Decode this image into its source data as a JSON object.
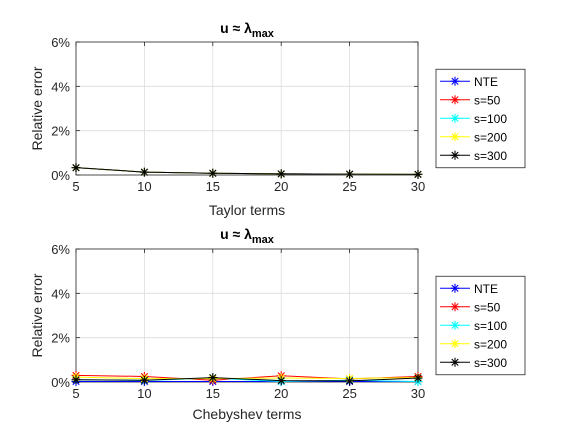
{
  "chart_data": [
    {
      "type": "line",
      "title": "u ≈ λ",
      "title_subscript": "max",
      "xlabel": "Taylor terms",
      "ylabel": "Relative error",
      "x": [
        5,
        10,
        15,
        20,
        25,
        30
      ],
      "xticks": [
        "5",
        "10",
        "15",
        "20",
        "25",
        "30"
      ],
      "xlim": [
        5,
        30
      ],
      "ylim": [
        0,
        6
      ],
      "yticks": [
        "0%",
        "2%",
        "4%",
        "6%"
      ],
      "grid": true,
      "legend_position": "right",
      "series": [
        {
          "name": "NTE",
          "color": "#0000ff",
          "values": [
            0.33,
            0.13,
            0.08,
            0.05,
            0.04,
            0.03
          ]
        },
        {
          "name": "s=50",
          "color": "#ff0000",
          "values": [
            0.33,
            0.13,
            0.08,
            0.05,
            0.04,
            0.03
          ]
        },
        {
          "name": "s=100",
          "color": "#00ffff",
          "values": [
            0.33,
            0.13,
            0.08,
            0.05,
            0.04,
            0.03
          ]
        },
        {
          "name": "s=200",
          "color": "#ffff00",
          "values": [
            0.33,
            0.13,
            0.08,
            0.05,
            0.04,
            0.03
          ]
        },
        {
          "name": "s=300",
          "color": "#000000",
          "values": [
            0.33,
            0.13,
            0.08,
            0.05,
            0.04,
            0.03
          ]
        }
      ]
    },
    {
      "type": "line",
      "title": "u ≈ λ",
      "title_subscript": "max",
      "xlabel": "Chebyshev terms",
      "ylabel": "Relative error",
      "x": [
        5,
        10,
        15,
        20,
        25,
        30
      ],
      "xticks": [
        "5",
        "10",
        "15",
        "20",
        "25",
        "30"
      ],
      "xlim": [
        5,
        30
      ],
      "ylim": [
        0,
        6
      ],
      "yticks": [
        "0%",
        "2%",
        "4%",
        "6%"
      ],
      "grid": true,
      "legend_position": "right",
      "series": [
        {
          "name": "NTE",
          "color": "#0000ff",
          "values": [
            0.02,
            0.02,
            0.02,
            0.02,
            0.02,
            0.02
          ]
        },
        {
          "name": "s=50",
          "color": "#ff0000",
          "values": [
            0.3,
            0.25,
            0.08,
            0.28,
            0.14,
            0.25
          ]
        },
        {
          "name": "s=100",
          "color": "#00ffff",
          "values": [
            0.1,
            0.07,
            0.18,
            0.02,
            0.08,
            0.02
          ]
        },
        {
          "name": "s=200",
          "color": "#ffff00",
          "values": [
            0.22,
            0.15,
            0.15,
            0.18,
            0.16,
            0.2
          ]
        },
        {
          "name": "s=300",
          "color": "#000000",
          "values": [
            0.1,
            0.08,
            0.2,
            0.06,
            0.05,
            0.18
          ]
        }
      ]
    }
  ]
}
